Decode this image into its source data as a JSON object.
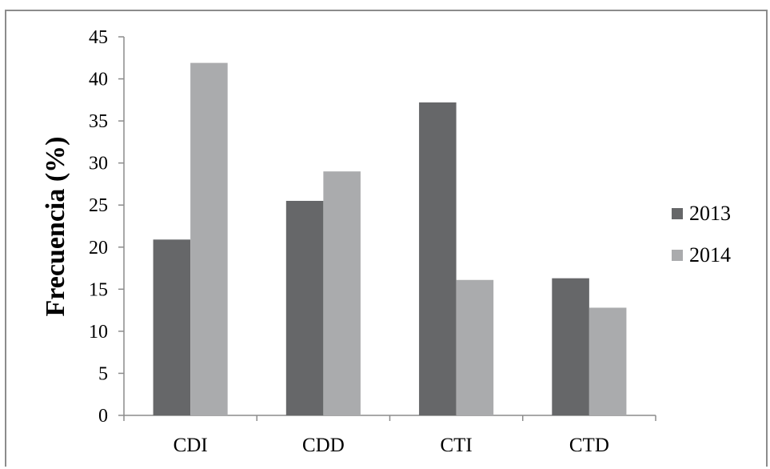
{
  "chart_data": {
    "type": "bar",
    "title": "",
    "xlabel": "",
    "ylabel": "Frecuencia (%)",
    "ylim": [
      0,
      45
    ],
    "yticks": [
      0,
      5,
      10,
      15,
      20,
      25,
      30,
      35,
      40,
      45
    ],
    "categories": [
      "CDI",
      "CDD",
      "CTI",
      "CTD"
    ],
    "series": [
      {
        "name": "2013",
        "color": "#666769",
        "values": [
          20.9,
          25.5,
          37.2,
          16.3
        ]
      },
      {
        "name": "2014",
        "color": "#aaabad",
        "values": [
          41.9,
          29.0,
          16.1,
          12.8
        ]
      }
    ],
    "grid": false,
    "legend": "right"
  }
}
